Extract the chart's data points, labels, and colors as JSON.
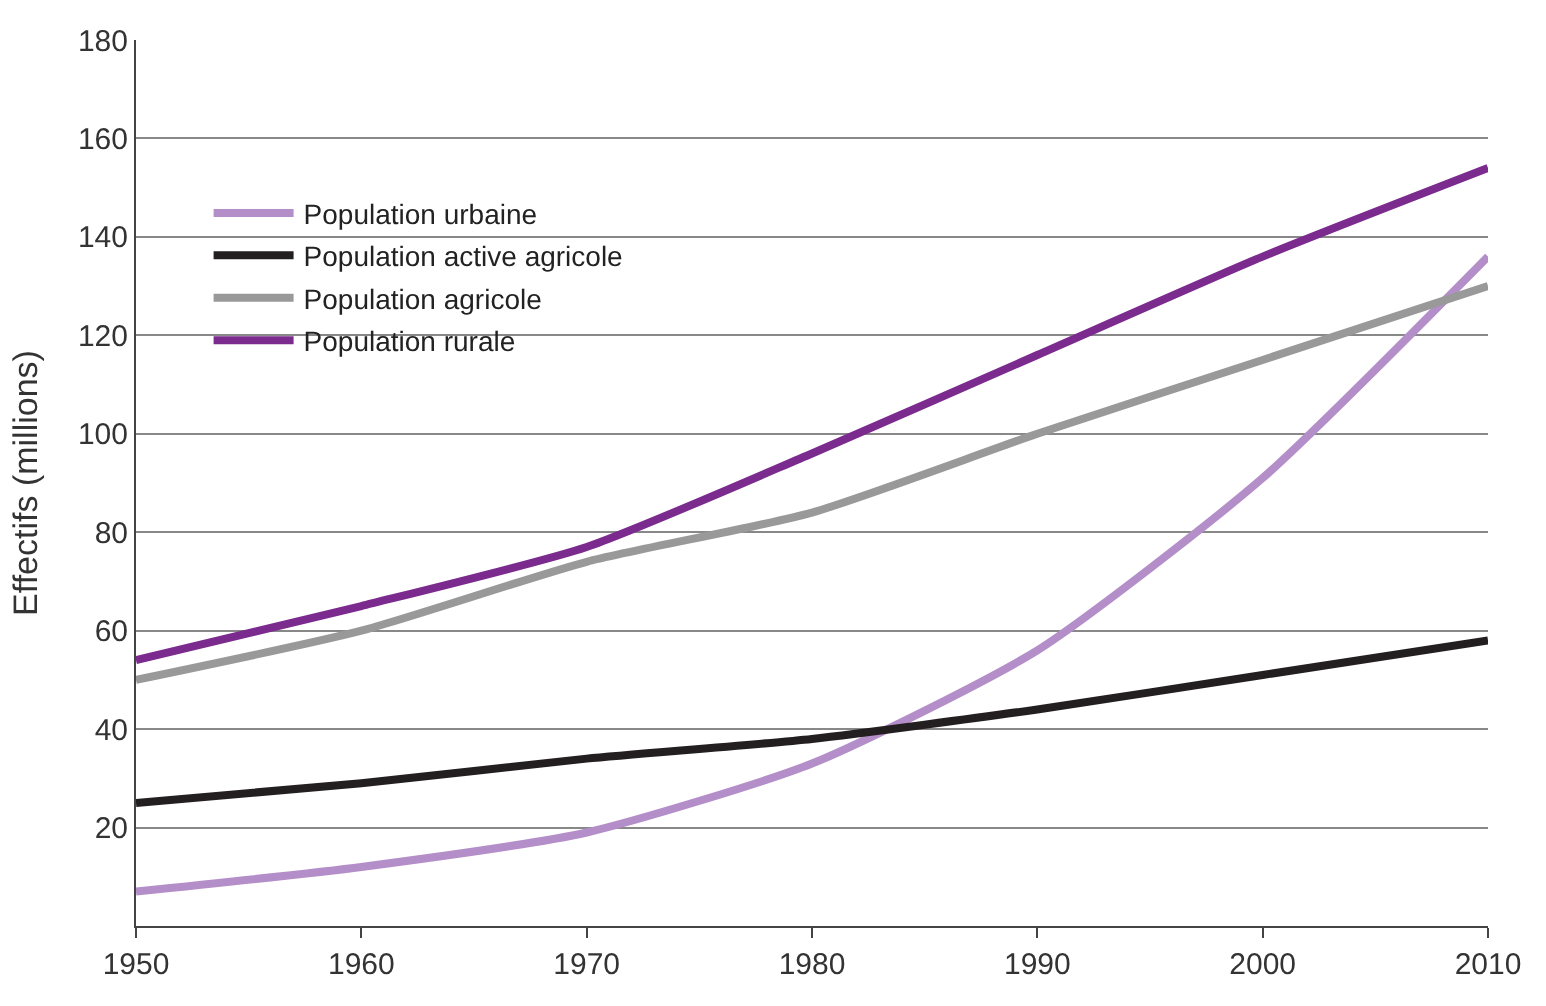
{
  "chart_data": {
    "type": "line",
    "ylabel": "Effectifs (millions)",
    "x": [
      1950,
      1960,
      1970,
      1980,
      1990,
      2000,
      2010
    ],
    "series": [
      {
        "name": "Population urbaine",
        "color": "#b48ec8",
        "values": [
          7,
          12,
          19,
          33,
          56,
          91,
          136
        ]
      },
      {
        "name": "Population active agricole",
        "color": "#231f20",
        "values": [
          25,
          29,
          34,
          38,
          44,
          51,
          58
        ]
      },
      {
        "name": "Population agricole",
        "color": "#999999",
        "values": [
          50,
          60,
          74,
          84,
          100,
          115,
          130
        ]
      },
      {
        "name": "Population rurale",
        "color": "#7b2a8e",
        "values": [
          54,
          65,
          77,
          96,
          116,
          136,
          154
        ]
      }
    ],
    "xlim": [
      1950,
      2010
    ],
    "xticks": [
      1950,
      1960,
      1970,
      1980,
      1990,
      2000,
      2010
    ],
    "ylim": [
      0,
      180
    ],
    "yticks": [
      20,
      40,
      60,
      80,
      100,
      120,
      140,
      160,
      180
    ],
    "grid": "y",
    "legend": "top left",
    "line_style": "solid",
    "marker": "none"
  }
}
